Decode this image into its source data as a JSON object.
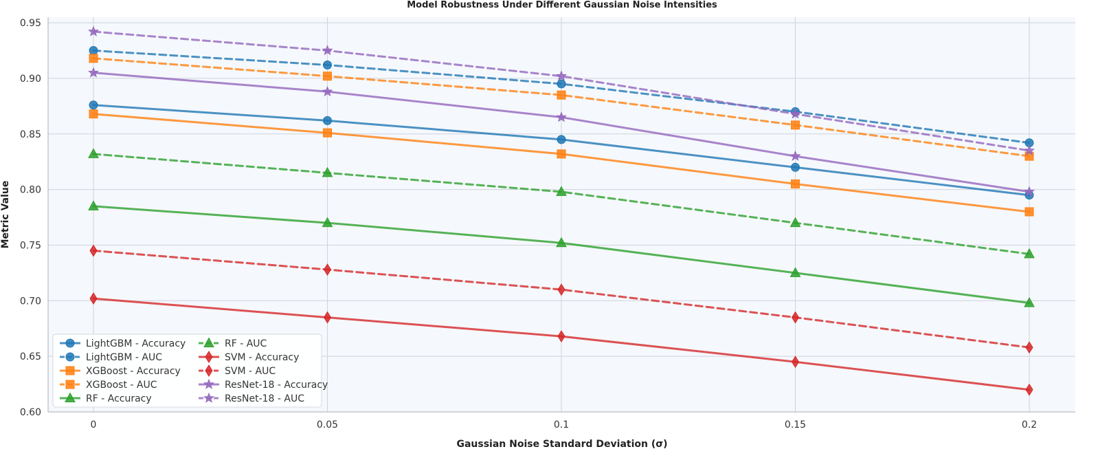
{
  "chart_data": {
    "type": "line",
    "title": "Model Robustness Under Different Gaussian Noise Intensities",
    "xlabel": "Gaussian Noise Standard Deviation (σ)",
    "ylabel": "Metric Value",
    "x": [
      0,
      0.05,
      0.1,
      0.15,
      0.2
    ],
    "x_tick_labels": [
      "0",
      "0.05",
      "0.1",
      "0.15",
      "0.2"
    ],
    "xlim": [
      -0.01,
      0.2
    ],
    "ylim": [
      0.6,
      0.955
    ],
    "y_ticks": [
      0.6,
      0.65,
      0.7,
      0.75,
      0.8,
      0.85,
      0.9,
      0.95
    ],
    "y_tick_labels": [
      "0.60",
      "0.65",
      "0.70",
      "0.75",
      "0.80",
      "0.85",
      "0.90",
      "0.95"
    ],
    "grid": true,
    "legend_position": "lower-left",
    "series": [
      {
        "name": "LightGBM - Accuracy",
        "color": "#1f77b4",
        "dash": "solid",
        "marker": "circle",
        "values": [
          0.876,
          0.862,
          0.845,
          0.82,
          0.795
        ]
      },
      {
        "name": "LightGBM - AUC",
        "color": "#1f77b4",
        "dash": "dashed",
        "marker": "circle",
        "values": [
          0.925,
          0.912,
          0.895,
          0.87,
          0.842
        ]
      },
      {
        "name": "XGBoost - Accuracy",
        "color": "#ff7f0e",
        "dash": "solid",
        "marker": "square",
        "values": [
          0.868,
          0.851,
          0.832,
          0.805,
          0.78
        ]
      },
      {
        "name": "XGBoost - AUC",
        "color": "#ff7f0e",
        "dash": "dashed",
        "marker": "square",
        "values": [
          0.918,
          0.902,
          0.885,
          0.858,
          0.83
        ]
      },
      {
        "name": "RF - Accuracy",
        "color": "#2ca02c",
        "dash": "solid",
        "marker": "triangle",
        "values": [
          0.785,
          0.77,
          0.752,
          0.725,
          0.698
        ]
      },
      {
        "name": "RF - AUC",
        "color": "#2ca02c",
        "dash": "dashed",
        "marker": "triangle",
        "values": [
          0.832,
          0.815,
          0.798,
          0.77,
          0.742
        ]
      },
      {
        "name": "SVM - Accuracy",
        "color": "#d62728",
        "dash": "solid",
        "marker": "diamond",
        "values": [
          0.702,
          0.685,
          0.668,
          0.645,
          0.62
        ]
      },
      {
        "name": "SVM - AUC",
        "color": "#d62728",
        "dash": "dashed",
        "marker": "diamond",
        "values": [
          0.745,
          0.728,
          0.71,
          0.685,
          0.658
        ]
      },
      {
        "name": "ResNet-18 - Accuracy",
        "color": "#9467bd",
        "dash": "solid",
        "marker": "star",
        "values": [
          0.905,
          0.888,
          0.865,
          0.83,
          0.798
        ]
      },
      {
        "name": "ResNet-18 - AUC",
        "color": "#9467bd",
        "dash": "dashed",
        "marker": "star",
        "values": [
          0.942,
          0.925,
          0.902,
          0.868,
          0.835
        ]
      }
    ]
  }
}
